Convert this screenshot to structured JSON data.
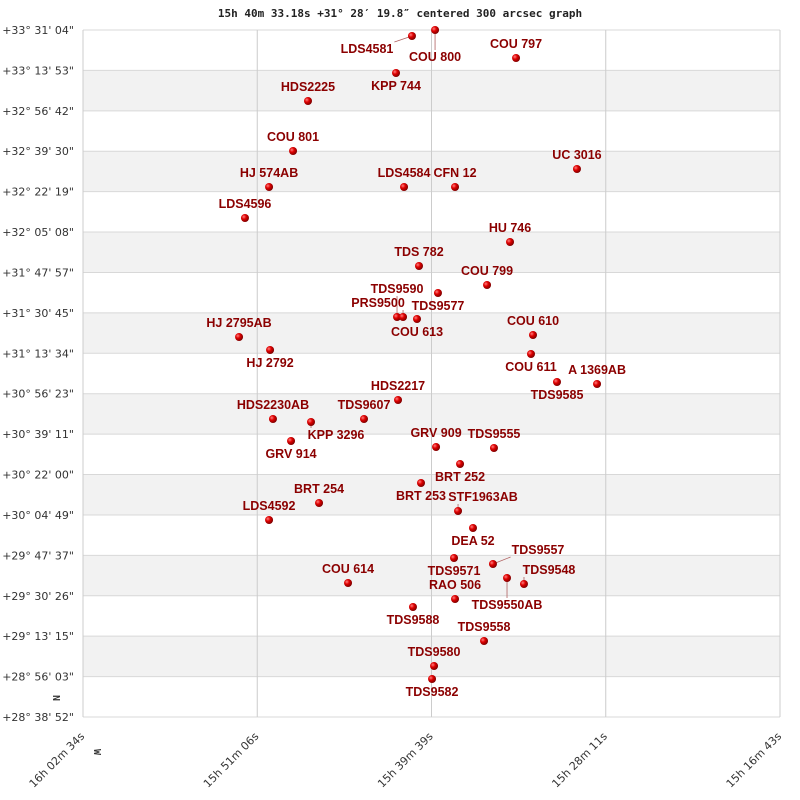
{
  "chart_data": {
    "type": "scatter",
    "title": "15h 40m 33.18s +31° 28′ 19.8″ centered 300 arcsec graph",
    "xlim_ra_hours": [
      16.0428,
      15.2786
    ],
    "ylim_dec_deg": [
      28.6478,
      33.5178
    ],
    "x_tick_labels": [
      "16h 02m 34s",
      "15h 51m 06s",
      "15h 39m 39s",
      "15h 28m 11s",
      "15h 16m 43s"
    ],
    "y_tick_labels": [
      "+33° 31' 04\"",
      "+33° 13' 53\"",
      "+32° 56' 42\"",
      "+32° 39' 30\"",
      "+32° 22' 19\"",
      "+32° 05' 08\"",
      "+31° 47' 57\"",
      "+31° 30' 45\"",
      "+31° 13' 34\"",
      "+30° 56' 23\"",
      "+30° 39' 11\"",
      "+30° 22' 00\"",
      "+30° 04' 49\"",
      "+29° 47' 37\"",
      "+29° 30' 26\"",
      "+29° 13' 15\"",
      "+28° 56' 03\"",
      "+28° 38' 52\""
    ],
    "orientation": {
      "north": "N",
      "west": "W"
    },
    "grid": true,
    "point_color": "#dd0000",
    "label_color": "#8b0000",
    "points": [
      {
        "name": "COU 800",
        "ra": 15.6568,
        "dec": 33.5178
      },
      {
        "name": "LDS4581",
        "ra": 15.6821,
        "dec": 33.4752
      },
      {
        "name": "COU 797",
        "ra": 15.568,
        "dec": 33.3193
      },
      {
        "name": "KPP 744",
        "ra": 15.6996,
        "dec": 33.213
      },
      {
        "name": "HDS2225",
        "ra": 15.7961,
        "dec": 33.0145
      },
      {
        "name": "COU 801",
        "ra": 15.8125,
        "dec": 32.66
      },
      {
        "name": "UC 3016",
        "ra": 15.5012,
        "dec": 32.5324
      },
      {
        "name": "HJ  574AB",
        "ra": 15.8388,
        "dec": 32.4048
      },
      {
        "name": "LDS4584",
        "ra": 15.6908,
        "dec": 32.4048
      },
      {
        "name": "CFN  12",
        "ra": 15.6349,
        "dec": 32.4048
      },
      {
        "name": "LDS4596",
        "ra": 15.8652,
        "dec": 32.1851
      },
      {
        "name": "HU  746",
        "ra": 15.5746,
        "dec": 32.0149
      },
      {
        "name": "TDS 782",
        "ra": 15.6744,
        "dec": 31.8448
      },
      {
        "name": "COU 799",
        "ra": 15.5998,
        "dec": 31.7101
      },
      {
        "name": "TDS9577",
        "ra": 15.6536,
        "dec": 31.6534
      },
      {
        "name": "TDS9590",
        "ra": 15.6985,
        "dec": 31.4833
      },
      {
        "name": "PRS9500",
        "ra": 15.6919,
        "dec": 31.4833
      },
      {
        "name": "COU 613",
        "ra": 15.6766,
        "dec": 31.4691
      },
      {
        "name": "HJ 2795AB",
        "ra": 15.8717,
        "dec": 31.3415
      },
      {
        "name": "HJ 2792",
        "ra": 15.8377,
        "dec": 31.2494
      },
      {
        "name": "COU 610",
        "ra": 15.5494,
        "dec": 31.3557
      },
      {
        "name": "COU 611",
        "ra": 15.5516,
        "dec": 31.221
      },
      {
        "name": "TDS9585",
        "ra": 15.5231,
        "dec": 31.0225
      },
      {
        "name": "A 1369AB",
        "ra": 15.4792,
        "dec": 31.0083
      },
      {
        "name": "HDS2217",
        "ra": 15.6974,
        "dec": 30.8949
      },
      {
        "name": "HDS2230AB",
        "ra": 15.8345,
        "dec": 30.7602
      },
      {
        "name": "KPP 3296",
        "ra": 15.7928,
        "dec": 30.739
      },
      {
        "name": "TDS9607",
        "ra": 15.7347,
        "dec": 30.7602
      },
      {
        "name": "GRV 914",
        "ra": 15.8147,
        "dec": 30.6043
      },
      {
        "name": "GRV 909",
        "ra": 15.6557,
        "dec": 30.5618
      },
      {
        "name": "TDS9555",
        "ra": 15.5922,
        "dec": 30.5547
      },
      {
        "name": "BRT 252",
        "ra": 15.6294,
        "dec": 30.4412
      },
      {
        "name": "BRT 253",
        "ra": 15.6722,
        "dec": 30.3066
      },
      {
        "name": "BRT 254",
        "ra": 15.784,
        "dec": 30.1648
      },
      {
        "name": "STF1963AB",
        "ra": 15.6316,
        "dec": 30.1081
      },
      {
        "name": "DEA  52",
        "ra": 15.6152,
        "dec": 29.9876
      },
      {
        "name": "LDS4592",
        "ra": 15.8388,
        "dec": 30.0443
      },
      {
        "name": "TDS9571",
        "ra": 15.636,
        "dec": 29.7749
      },
      {
        "name": "TDS9557",
        "ra": 15.5933,
        "dec": 29.7324
      },
      {
        "name": "TDS9550AB",
        "ra": 15.5779,
        "dec": 29.6331
      },
      {
        "name": "TDS9548",
        "ra": 15.5593,
        "dec": 29.5906
      },
      {
        "name": "COU 614",
        "ra": 15.7522,
        "dec": 29.5977
      },
      {
        "name": "RAO 506",
        "ra": 15.6349,
        "dec": 29.4842
      },
      {
        "name": "TDS9588",
        "ra": 15.681,
        "dec": 29.4275
      },
      {
        "name": "TDS9558",
        "ra": 15.6031,
        "dec": 29.1865
      },
      {
        "name": "TDS9580",
        "ra": 15.6579,
        "dec": 29.0093
      },
      {
        "name": "TDS9582",
        "ra": 15.6601,
        "dec": 28.9171
      }
    ]
  }
}
